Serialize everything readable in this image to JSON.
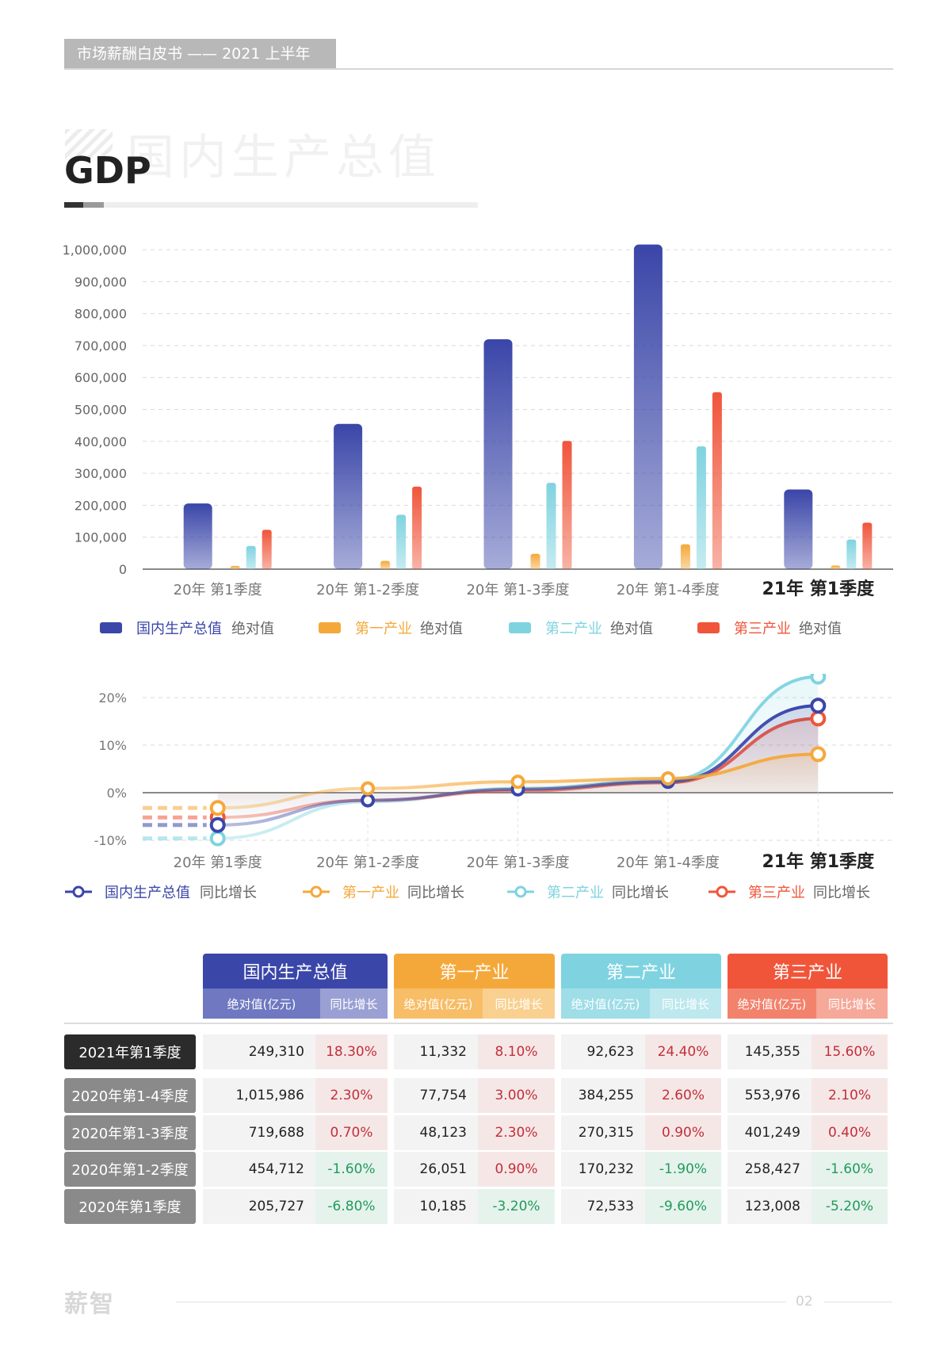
{
  "header": {
    "tag": "市场薪酬白皮书 —— 2021 上半年"
  },
  "section": {
    "title": "GDP",
    "ghost_title": "国内生产总值"
  },
  "chart_data": [
    {
      "type": "bar",
      "categories": [
        "20年 第1季度",
        "20年 第1-2季度",
        "20年 第1-3季度",
        "20年 第1-4季度",
        "21年 第1季度"
      ],
      "yticks": [
        "0",
        "100,000",
        "200,000",
        "300,000",
        "400,000",
        "500,000",
        "600,000",
        "700,000",
        "800,000",
        "900,000",
        "1,000,000"
      ],
      "ylim": [
        0,
        1000000
      ],
      "series": [
        {
          "name_a": "国内生产总值",
          "name_b": "绝对值",
          "color": "#3a46a8",
          "values": [
            205727,
            454712,
            719688,
            1015986,
            249310
          ]
        },
        {
          "name_a": "第一产业",
          "name_b": "绝对值",
          "color": "#f5a83a",
          "values": [
            10185,
            26051,
            48123,
            77754,
            11332
          ]
        },
        {
          "name_a": "第二产业",
          "name_b": "绝对值",
          "color": "#7fd3e0",
          "values": [
            72533,
            170232,
            270315,
            384255,
            92623
          ]
        },
        {
          "name_a": "第三产业",
          "name_b": "绝对值",
          "color": "#f0553a",
          "values": [
            123008,
            258427,
            401249,
            553976,
            145355
          ]
        }
      ]
    },
    {
      "type": "line",
      "categories": [
        "20年 第1季度",
        "20年 第1-2季度",
        "20年 第1-3季度",
        "20年 第1-4季度",
        "21年 第1季度"
      ],
      "yticks": [
        "-10%",
        "0%",
        "10%",
        "20%"
      ],
      "ylim": [
        -10,
        20
      ],
      "series": [
        {
          "name_a": "国内生产总值",
          "name_b": "同比增长",
          "color": "#3a46a8",
          "values": [
            -6.8,
            -1.6,
            0.7,
            2.3,
            18.3
          ]
        },
        {
          "name_a": "第一产业",
          "name_b": "同比增长",
          "color": "#f5a83a",
          "values": [
            -3.2,
            0.9,
            2.3,
            3.0,
            8.1
          ]
        },
        {
          "name_a": "第二产业",
          "name_b": "同比增长",
          "color": "#7fd3e0",
          "values": [
            -9.6,
            -1.9,
            0.9,
            2.6,
            24.4
          ]
        },
        {
          "name_a": "第三产业",
          "name_b": "同比增长",
          "color": "#f0553a",
          "values": [
            -5.2,
            -1.6,
            0.4,
            2.1,
            15.6
          ]
        }
      ]
    }
  ],
  "table": {
    "groups": [
      {
        "name": "国内生产总值",
        "color": "#3a46a8",
        "sub_bg_a": "#6f78c0",
        "sub_bg_b": "#9aa0d4"
      },
      {
        "name": "第一产业",
        "color": "#f5a83a",
        "sub_bg_a": "#f7bd67",
        "sub_bg_b": "#f9d08f"
      },
      {
        "name": "第二产业",
        "color": "#7fd3e0",
        "sub_bg_a": "#9fdde7",
        "sub_bg_b": "#bde8ee"
      },
      {
        "name": "第三产业",
        "color": "#f0553a",
        "sub_bg_a": "#f3826c",
        "sub_bg_b": "#f6a899"
      }
    ],
    "sub_abs": "绝对值(亿元)",
    "sub_yoy": "同比增长",
    "rows": [
      {
        "label": "2021年第1季度",
        "cells": [
          "249,310",
          "18.30%",
          "11,332",
          "8.10%",
          "92,623",
          "24.40%",
          "145,355",
          "15.60%"
        ]
      },
      {
        "label": "2020年第1-4季度",
        "cells": [
          "1,015,986",
          "2.30%",
          "77,754",
          "3.00%",
          "384,255",
          "2.60%",
          "553,976",
          "2.10%"
        ]
      },
      {
        "label": "2020年第1-3季度",
        "cells": [
          "719,688",
          "0.70%",
          "48,123",
          "2.30%",
          "270,315",
          "0.90%",
          "401,249",
          "0.40%"
        ]
      },
      {
        "label": "2020年第1-2季度",
        "cells": [
          "454,712",
          "-1.60%",
          "26,051",
          "0.90%",
          "170,232",
          "-1.90%",
          "258,427",
          "-1.60%"
        ]
      },
      {
        "label": "2020年第1季度",
        "cells": [
          "205,727",
          "-6.80%",
          "10,185",
          "-3.20%",
          "72,533",
          "-9.60%",
          "123,008",
          "-5.20%"
        ]
      }
    ]
  },
  "footer": {
    "logo": "薪智",
    "page": "02"
  }
}
